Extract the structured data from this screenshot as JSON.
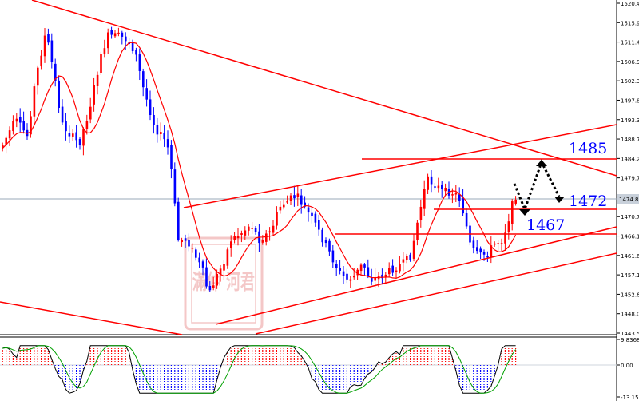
{
  "chart_data": [
    {
      "type": "candlestick",
      "panel": "price",
      "price_axis_ticks": [
        "1520.40",
        "1515.90",
        "1511.40",
        "1506.90",
        "1502.30",
        "1497.80",
        "1493.30",
        "1488.70",
        "1484.20",
        "1479.70",
        "1475.20",
        "1470.70",
        "1466.10",
        "1461.60",
        "1457.10",
        "1452.60",
        "1448.00",
        "1443.50"
      ],
      "ylim": [
        1443.5,
        1520.4
      ],
      "current_price_label": "1474.87",
      "current_price": 1474.87,
      "colors": {
        "bull": "#ff0000",
        "bear": "#0000ff",
        "trendline": "#ff0000",
        "annotation_text": "#0000ff",
        "moving_average": "#ff0000"
      },
      "annotations": [
        {
          "text": "1485",
          "price": 1484.2,
          "kind": "horizontal-level"
        },
        {
          "text": "1472",
          "price": 1471.3,
          "kind": "horizontal-level"
        },
        {
          "text": "1467",
          "price": 1466.3,
          "kind": "horizontal-level"
        }
      ],
      "projection_path_prices": [
        1472.0,
        1482.5,
        1474.0
      ],
      "has_trendlines": true,
      "has_moving_average": true,
      "has_watermark_seal": true,
      "watermark_text": "滿仲 河君"
    },
    {
      "type": "macd-histogram",
      "panel": "oscillator",
      "axis_ticks": [
        "9.8368",
        "0.00",
        "-13.1579"
      ],
      "ylim": [
        -13.1579,
        9.8368
      ],
      "colors": {
        "positive": "#ff0000",
        "negative": "#0000ff",
        "main_line": "#000000",
        "signal_line": "#00a000"
      }
    }
  ]
}
